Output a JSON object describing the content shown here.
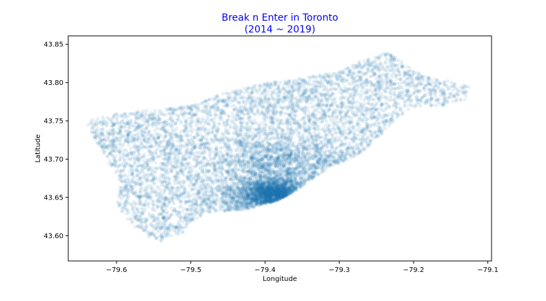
{
  "chart_data": {
    "type": "scatter",
    "title": "Break n Enter in Toronto",
    "subtitle": "(2014 ~ 2019)",
    "xlabel": "Longitude",
    "ylabel": "Latitude",
    "xlim": [
      -79.665,
      -79.095
    ],
    "ylim": [
      43.567,
      43.861
    ],
    "xticks": [
      -79.6,
      -79.5,
      -79.4,
      -79.3,
      -79.2,
      -79.1
    ],
    "xtick_labels": [
      "−79.6",
      "−79.5",
      "−79.4",
      "−79.3",
      "−79.2",
      "−79.1"
    ],
    "yticks": [
      43.6,
      43.65,
      43.7,
      43.75,
      43.8,
      43.85
    ],
    "ytick_labels": [
      "43.60",
      "43.65",
      "43.70",
      "43.75",
      "43.80",
      "43.85"
    ],
    "grid": false,
    "point_color": "#1f77b4",
    "title_color": "#0000ff",
    "point_alpha": 0.1,
    "outline": [
      [
        -79.635,
        43.752
      ],
      [
        -79.6,
        43.76
      ],
      [
        -79.55,
        43.765
      ],
      [
        -79.5,
        43.77
      ],
      [
        -79.46,
        43.785
      ],
      [
        -79.4,
        43.8
      ],
      [
        -79.35,
        43.806
      ],
      [
        -79.3,
        43.815
      ],
      [
        -79.27,
        43.828
      ],
      [
        -79.235,
        43.84
      ],
      [
        -79.205,
        43.82
      ],
      [
        -79.185,
        43.808
      ],
      [
        -79.15,
        43.802
      ],
      [
        -79.125,
        43.795
      ],
      [
        -79.13,
        43.777
      ],
      [
        -79.16,
        43.77
      ],
      [
        -79.2,
        43.768
      ],
      [
        -79.225,
        43.752
      ],
      [
        -79.245,
        43.73
      ],
      [
        -79.27,
        43.708
      ],
      [
        -79.31,
        43.69
      ],
      [
        -79.34,
        43.672
      ],
      [
        -79.36,
        43.658
      ],
      [
        -79.385,
        43.645
      ],
      [
        -79.405,
        43.64
      ],
      [
        -79.43,
        43.633
      ],
      [
        -79.46,
        43.632
      ],
      [
        -79.48,
        43.63
      ],
      [
        -79.5,
        43.617
      ],
      [
        -79.51,
        43.605
      ],
      [
        -79.54,
        43.592
      ],
      [
        -79.56,
        43.6
      ],
      [
        -79.58,
        43.615
      ],
      [
        -79.6,
        43.64
      ],
      [
        -79.595,
        43.67
      ],
      [
        -79.62,
        43.71
      ],
      [
        -79.64,
        43.745
      ]
    ],
    "dense_clusters": [
      {
        "lon": -79.385,
        "lat": 43.655,
        "spread": 0.018,
        "weight": 0.32
      },
      {
        "lon": -79.41,
        "lat": 43.65,
        "spread": 0.03,
        "weight": 0.18
      },
      {
        "lon": -79.33,
        "lat": 43.685,
        "spread": 0.04,
        "weight": 0.12
      },
      {
        "lon": -79.4,
        "lat": 43.7,
        "spread": 0.03,
        "weight": 0.08
      }
    ]
  }
}
